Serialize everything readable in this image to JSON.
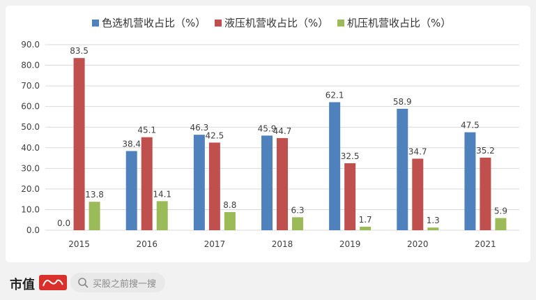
{
  "chart_data": {
    "type": "bar",
    "categories": [
      "2015",
      "2016",
      "2017",
      "2018",
      "2019",
      "2020",
      "2021"
    ],
    "series": [
      {
        "name": "色选机营收占比（%）",
        "color": "#4f81bd",
        "values": [
          0.0,
          38.4,
          46.3,
          45.9,
          62.1,
          58.9,
          47.5
        ]
      },
      {
        "name": "液压机营收占比（%）",
        "color": "#c0504d",
        "values": [
          83.5,
          45.1,
          42.5,
          44.7,
          32.5,
          34.7,
          35.2
        ]
      },
      {
        "name": "机压机营收占比（%）",
        "color": "#9bbb59",
        "values": [
          13.8,
          14.1,
          8.8,
          6.3,
          1.7,
          1.3,
          5.9
        ]
      }
    ],
    "ylim": [
      0,
      90
    ],
    "yticks": [
      "0.0",
      "10.0",
      "20.0",
      "30.0",
      "40.0",
      "50.0",
      "60.0",
      "70.0",
      "80.0",
      "90.0"
    ],
    "grid": true,
    "legend": "top-center",
    "data_labels": true
  },
  "footer": {
    "brand": "市值",
    "search_placeholder": "买股之前搜一搜",
    "search_icon": "search-icon"
  }
}
